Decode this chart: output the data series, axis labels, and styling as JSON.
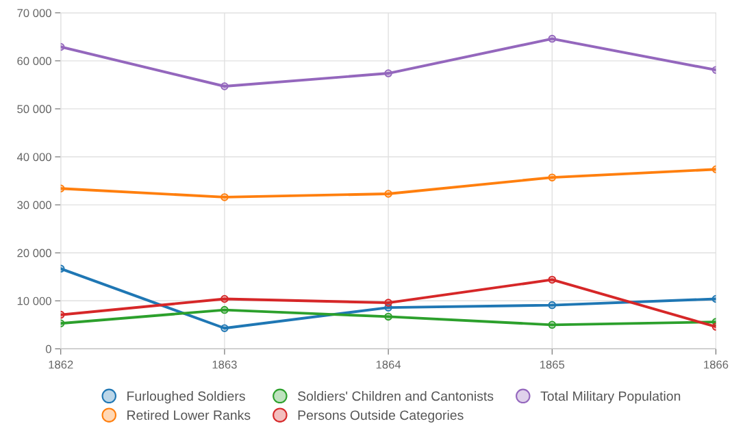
{
  "chart_data": {
    "type": "line",
    "x": [
      1862,
      1863,
      1864,
      1865,
      1866
    ],
    "series": [
      {
        "name": "Furloughed Soldiers",
        "color": "#1f77b4",
        "values": [
          16700,
          4300,
          8600,
          9100,
          10400
        ]
      },
      {
        "name": "Retired Lower Ranks",
        "color": "#ff7f0e",
        "values": [
          33400,
          31600,
          32300,
          35700,
          37400
        ]
      },
      {
        "name": "Soldiers' Children and Cantonists",
        "color": "#2ca02c",
        "values": [
          5300,
          8100,
          6700,
          5000,
          5600
        ]
      },
      {
        "name": "Persons Outside Categories",
        "color": "#d62728",
        "values": [
          7100,
          10400,
          9600,
          14400,
          4600
        ]
      },
      {
        "name": "Total Military Population",
        "color": "#9467bd",
        "values": [
          62900,
          54700,
          57400,
          64600,
          58100
        ]
      }
    ],
    "xlim": [
      1862,
      1866
    ],
    "xticks": [
      1862,
      1863,
      1864,
      1865,
      1866
    ],
    "ylim": [
      0,
      70000
    ],
    "yticks": [
      0,
      {
        "value": 10000,
        "label": "10 000"
      },
      {
        "value": 20000,
        "label": "20 000"
      },
      {
        "value": 30000,
        "label": "30 000"
      },
      {
        "value": 40000,
        "label": "40 000"
      },
      {
        "value": 50000,
        "label": "50 000"
      },
      {
        "value": 60000,
        "label": "60 000"
      },
      {
        "value": 70000,
        "label": "70 000"
      }
    ],
    "grid": true,
    "legend": "bottom",
    "marker": "circle",
    "line_style": "solid"
  }
}
